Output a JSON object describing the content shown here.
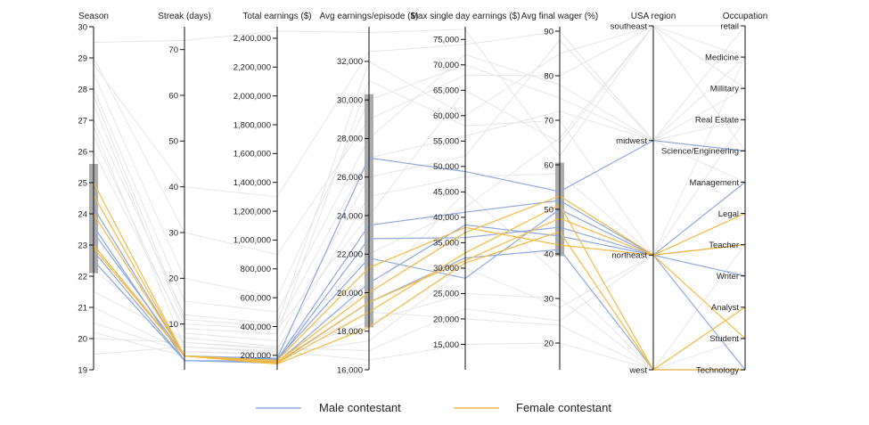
{
  "chart_data": {
    "type": "parallel_coordinates",
    "axes": [
      {
        "key": "season",
        "title": "Season",
        "type": "linear",
        "domain": [
          19,
          30
        ],
        "ticks": [
          19,
          20,
          21,
          22,
          23,
          24,
          25,
          26,
          27,
          28,
          29,
          30
        ],
        "tick_labels": [
          "19",
          "20",
          "21",
          "22",
          "23",
          "24",
          "25",
          "26",
          "27",
          "28",
          "29",
          "30"
        ],
        "label_side": "left",
        "brush": [
          22.1,
          25.6
        ]
      },
      {
        "key": "streak",
        "title": "Streak (days)",
        "type": "linear",
        "domain": [
          0,
          75
        ],
        "ticks": [
          10,
          20,
          30,
          40,
          50,
          60,
          70
        ],
        "tick_labels": [
          "10",
          "20",
          "30",
          "40",
          "50",
          "60",
          "70"
        ],
        "label_side": "left"
      },
      {
        "key": "total",
        "title": "Total earnings ($)",
        "type": "linear",
        "domain": [
          100000,
          2480000
        ],
        "ticks": [
          200000,
          400000,
          600000,
          800000,
          1000000,
          1200000,
          1400000,
          1600000,
          1800000,
          2000000,
          2200000,
          2400000
        ],
        "tick_labels": [
          "200,000",
          "400,000",
          "600,000",
          "800,000",
          "1,000,000",
          "1,200,000",
          "1,400,000",
          "1,600,000",
          "1,800,000",
          "2,000,000",
          "2,200,000",
          "2,400,000"
        ],
        "label_side": "left"
      },
      {
        "key": "avg",
        "title": "Avg earnings/episode ($)",
        "type": "linear",
        "domain": [
          16000,
          33800
        ],
        "ticks": [
          16000,
          18000,
          20000,
          22000,
          24000,
          26000,
          28000,
          30000,
          32000
        ],
        "tick_labels": [
          "16,000",
          "18,000",
          "20,000",
          "22,000",
          "24,000",
          "26,000",
          "28,000",
          "30,000",
          "32,000"
        ],
        "label_side": "left",
        "brush": [
          18200,
          30300
        ]
      },
      {
        "key": "max",
        "title": "Max single day earnings ($)",
        "type": "linear",
        "domain": [
          10000,
          77500
        ],
        "ticks": [
          15000,
          20000,
          25000,
          30000,
          35000,
          40000,
          45000,
          50000,
          55000,
          60000,
          65000,
          70000,
          75000
        ],
        "tick_labels": [
          "15,000",
          "20,000",
          "25,000",
          "30,000",
          "35,000",
          "40,000",
          "45,000",
          "50,000",
          "55,000",
          "60,000",
          "65,000",
          "70,000",
          "75,000"
        ],
        "label_side": "left"
      },
      {
        "key": "wager",
        "title": "Avg final wager (%)",
        "type": "linear",
        "domain": [
          14,
          91
        ],
        "ticks": [
          20,
          30,
          40,
          50,
          60,
          70,
          80,
          90
        ],
        "tick_labels": [
          "20",
          "30",
          "40",
          "50",
          "60",
          "70",
          "80",
          "90"
        ],
        "label_side": "left",
        "brush": [
          39.5,
          60.5
        ]
      },
      {
        "key": "region",
        "title": "USA region",
        "type": "categorical",
        "categories": [
          "west",
          "northeast",
          "midwest",
          "southeast"
        ],
        "label_side": "left"
      },
      {
        "key": "occupation",
        "title": "Occupation",
        "type": "categorical",
        "categories": [
          "Technology",
          "Student",
          "Analyst",
          "Writer",
          "Teacher",
          "Legal",
          "Management",
          "Science/Engineering",
          "Real Estate",
          "Millitary",
          "Medicine",
          "retail"
        ],
        "label_side": "left"
      }
    ],
    "series": [
      {
        "name": "Male contestant",
        "color": "#8ea9de",
        "rows": [
          [
            23.0,
            3,
            180000,
            27000,
            49000,
            54,
            "midwest",
            "Science/Engineering"
          ],
          [
            23.4,
            3,
            170000,
            23500,
            41000,
            52,
            "northeast",
            "Management"
          ],
          [
            22.8,
            2,
            160000,
            22800,
            36000,
            46,
            "northeast",
            "Writer"
          ],
          [
            24.2,
            3,
            175000,
            21800,
            28000,
            50,
            "northeast",
            "Teacher"
          ],
          [
            23.6,
            2,
            150000,
            20500,
            38500,
            44,
            "northeast",
            "Technology"
          ],
          [
            22.5,
            2,
            145000,
            19500,
            32000,
            41,
            "west",
            "Technology"
          ]
        ]
      },
      {
        "name": "Female contestant",
        "color": "#f5b942",
        "rows": [
          [
            25.0,
            3,
            165000,
            21300,
            38000,
            42,
            "northeast",
            "Teacher"
          ],
          [
            24.0,
            3,
            155000,
            20000,
            37000,
            53,
            "northeast",
            "Legal"
          ],
          [
            23.0,
            3,
            150000,
            19500,
            31500,
            48,
            "northeast",
            "Student"
          ],
          [
            24.6,
            3,
            140000,
            18200,
            31000,
            45,
            "west",
            "Technology"
          ],
          [
            22.9,
            3,
            145000,
            19000,
            33000,
            51,
            "west",
            "Analyst"
          ]
        ]
      }
    ],
    "background_rows": [
      [
        29.5,
        72,
        2450000,
        33500,
        77000,
        62,
        "southeast",
        "retail"
      ],
      [
        28.5,
        20,
        600000,
        30000,
        70000,
        75,
        "midwest",
        "Medicine"
      ],
      [
        27.0,
        12,
        420000,
        32000,
        60000,
        85,
        "southeast",
        "Millitary"
      ],
      [
        26.5,
        8,
        300000,
        26000,
        52000,
        88,
        "midwest",
        "Real Estate"
      ],
      [
        21.0,
        4,
        200000,
        18500,
        25000,
        30,
        "west",
        "Teacher"
      ],
      [
        20.0,
        6,
        250000,
        17000,
        22000,
        25,
        "northeast",
        "Medicine"
      ],
      [
        27.5,
        10,
        380000,
        24000,
        65000,
        65,
        "southeast",
        "Millitary"
      ],
      [
        19.5,
        5,
        230000,
        16500,
        15000,
        20,
        "west",
        "Student"
      ],
      [
        28.0,
        15,
        500000,
        28000,
        72000,
        78,
        "midwest",
        "retail"
      ],
      [
        26.0,
        9,
        350000,
        31000,
        58000,
        70,
        "northeast",
        "Real Estate"
      ],
      [
        21.5,
        7,
        260000,
        20000,
        45000,
        35,
        "west",
        "Analyst"
      ],
      [
        20.5,
        4,
        210000,
        17500,
        30000,
        28,
        "northeast",
        "Writer"
      ],
      [
        29.0,
        30,
        900000,
        29000,
        68000,
        80,
        "southeast",
        "Medicine"
      ],
      [
        27.8,
        11,
        400000,
        27000,
        56000,
        72,
        "midwest",
        "Management"
      ],
      [
        22.2,
        6,
        240000,
        25000,
        48000,
        58,
        "northeast",
        "Legal"
      ],
      [
        26.8,
        5,
        220000,
        22000,
        42000,
        66,
        "southeast",
        "Science/Engineering"
      ],
      [
        20.2,
        3,
        180000,
        19000,
        20000,
        24,
        "west",
        "Technology"
      ],
      [
        28.8,
        40,
        1300000,
        32500,
        74000,
        90,
        "midwest",
        "Millitary"
      ]
    ],
    "legend": [
      {
        "label": "Male contestant",
        "color": "#8ea9de"
      },
      {
        "label": "Female contestant",
        "color": "#f5b942"
      }
    ],
    "background_color": "#e6e6e6",
    "legend_position": "bottom-center"
  }
}
